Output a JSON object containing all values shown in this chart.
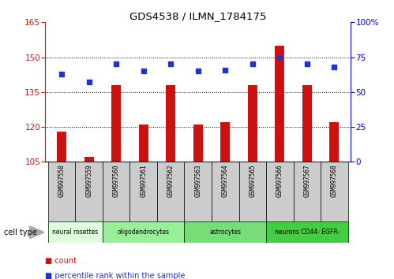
{
  "title": "GDS4538 / ILMN_1784175",
  "samples": [
    "GSM997558",
    "GSM997559",
    "GSM997560",
    "GSM997561",
    "GSM997562",
    "GSM997563",
    "GSM997564",
    "GSM997565",
    "GSM997566",
    "GSM997567",
    "GSM997568"
  ],
  "bar_values": [
    118,
    107,
    138,
    121,
    138,
    121,
    122,
    138,
    155,
    138,
    122
  ],
  "percentile_values": [
    63,
    57,
    70,
    65,
    70,
    65,
    66,
    70,
    75,
    70,
    68
  ],
  "ylim_left": [
    105,
    165
  ],
  "ylim_right": [
    0,
    100
  ],
  "yticks_left": [
    105,
    120,
    135,
    150,
    165
  ],
  "yticks_right": [
    0,
    25,
    50,
    75,
    100
  ],
  "bar_color": "#cc1111",
  "dot_color": "#2233cc",
  "cell_types": [
    {
      "label": "neural rosettes",
      "start": 0,
      "end": 2,
      "color": "#ddffdd"
    },
    {
      "label": "oligodendrocytes",
      "start": 2,
      "end": 5,
      "color": "#99ee99"
    },
    {
      "label": "astrocytes",
      "start": 5,
      "end": 8,
      "color": "#77dd77"
    },
    {
      "label": "neurons CD44- EGFR-",
      "start": 8,
      "end": 11,
      "color": "#44cc44"
    }
  ],
  "cell_type_label": "cell type",
  "legend_count": "count",
  "legend_percentile": "percentile rank within the sample",
  "bar_bottom": 105,
  "right_axis_color": "#0000cc",
  "left_axis_color": "#cc1111",
  "grid_ticks": [
    120,
    135,
    150
  ],
  "sample_box_color": "#cccccc",
  "bar_width": 0.35
}
